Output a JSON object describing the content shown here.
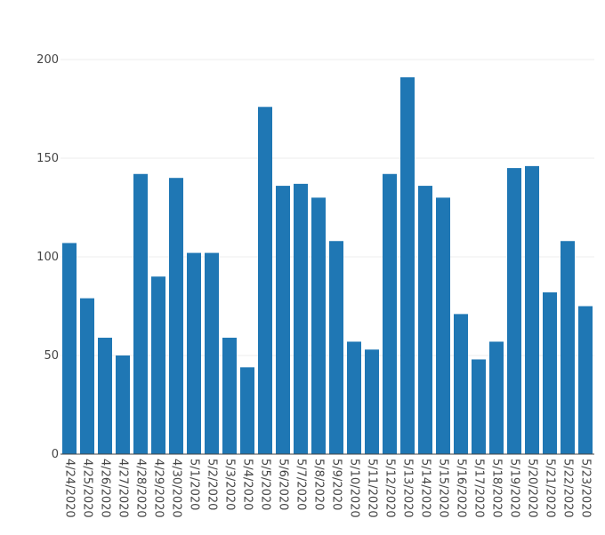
{
  "chart_data": {
    "type": "bar",
    "title": "",
    "xlabel": "",
    "ylabel": "",
    "ylim": [
      0,
      200
    ],
    "yticks": [
      0,
      50,
      100,
      150,
      200
    ],
    "grid": true,
    "legend": "none",
    "bar_color": "#1f77b4",
    "categories": [
      "4/24/2020",
      "4/25/2020",
      "4/26/2020",
      "4/27/2020",
      "4/28/2020",
      "4/29/2020",
      "4/30/2020",
      "5/1/2020",
      "5/2/2020",
      "5/3/2020",
      "5/4/2020",
      "5/5/2020",
      "5/6/2020",
      "5/7/2020",
      "5/8/2020",
      "5/9/2020",
      "5/10/2020",
      "5/11/2020",
      "5/12/2020",
      "5/13/2020",
      "5/14/2020",
      "5/15/2020",
      "5/16/2020",
      "5/17/2020",
      "5/18/2020",
      "5/19/2020",
      "5/20/2020",
      "5/21/2020",
      "5/22/2020",
      "5/23/2020"
    ],
    "values": [
      107,
      79,
      59,
      50,
      142,
      90,
      140,
      102,
      102,
      59,
      44,
      176,
      136,
      137,
      130,
      108,
      57,
      53,
      142,
      191,
      136,
      130,
      71,
      48,
      57,
      145,
      146,
      82,
      108,
      75
    ]
  }
}
